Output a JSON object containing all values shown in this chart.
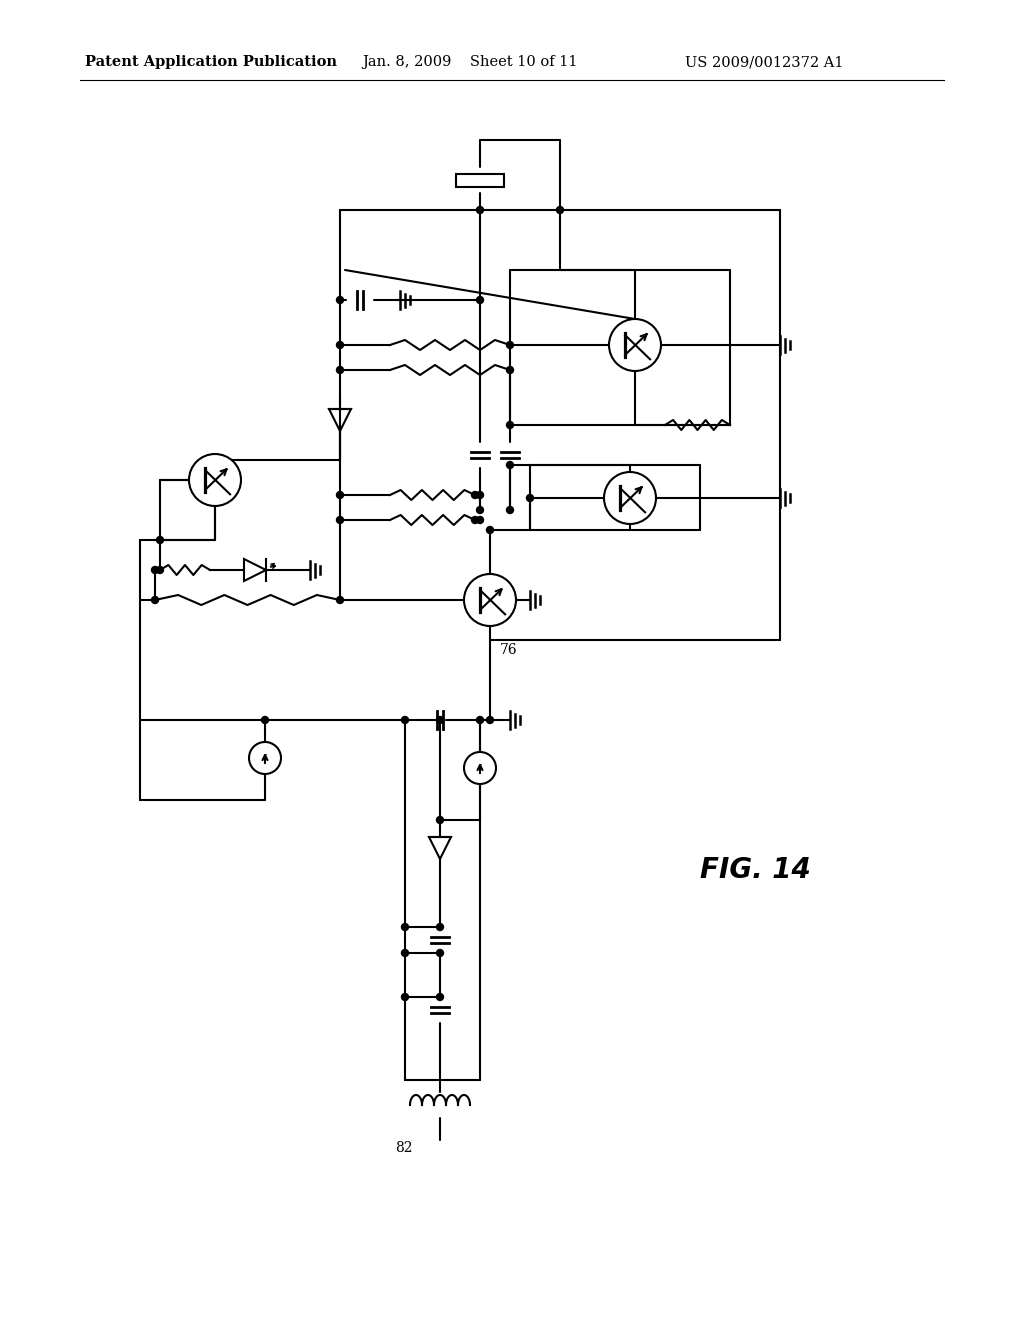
{
  "header_left": "Patent Application Publication",
  "header_center": "Jan. 8, 2009    Sheet 10 of 11",
  "header_right": "US 2009/0012372 A1",
  "fig_label": "FIG. 14",
  "label_76": "76",
  "label_82": "82",
  "bg_color": "#ffffff",
  "line_color": "#000000",
  "lw": 1.5
}
